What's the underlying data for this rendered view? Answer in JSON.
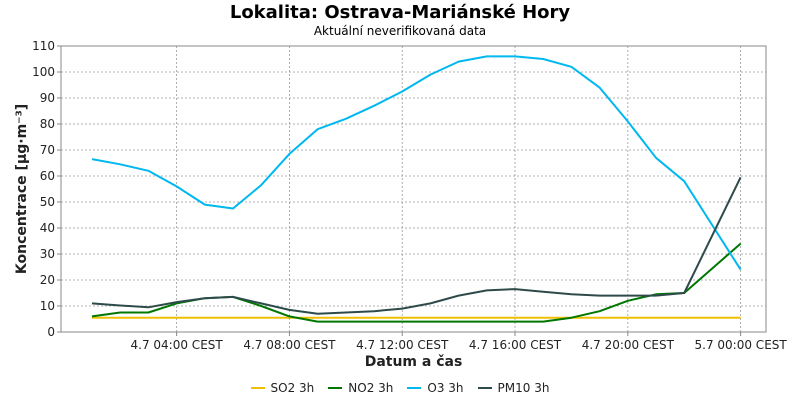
{
  "chart_data": {
    "type": "line",
    "title": "Lokalita: Ostrava-Mariánské Hory",
    "subtitle": "Aktuální neverifikovaná data",
    "xlabel": "Datum a čas",
    "ylabel": "Koncentrace [µg·m⁻³]",
    "ylim": [
      0,
      110
    ],
    "yticks": [
      0,
      10,
      20,
      30,
      40,
      50,
      60,
      70,
      80,
      90,
      100,
      110
    ],
    "xlim_hours": [
      -1.1,
      23.9
    ],
    "xticks": [
      {
        "hour": 3,
        "label": "4.7 04:00 CEST"
      },
      {
        "hour": 7,
        "label": "4.7 08:00 CEST"
      },
      {
        "hour": 11,
        "label": "4.7 12:00 CEST"
      },
      {
        "hour": 15,
        "label": "4.7 16:00 CEST"
      },
      {
        "hour": 19,
        "label": "4.7 20:00 CEST"
      },
      {
        "hour": 23,
        "label": "5.7 00:00 CEST"
      }
    ],
    "x_hours": [
      0,
      1,
      2,
      3,
      4,
      5,
      6,
      7,
      8,
      9,
      10,
      11,
      12,
      13,
      14,
      15,
      16,
      17,
      18,
      19,
      20,
      21,
      22,
      23
    ],
    "grid": true,
    "legend_position": "bottom",
    "series": [
      {
        "name": "SO2 3h",
        "color": "#f0c000",
        "values": [
          5.5,
          5.5,
          5.5,
          5.5,
          5.5,
          5.5,
          5.5,
          5.5,
          5.5,
          5.5,
          5.5,
          5.5,
          5.5,
          5.5,
          5.5,
          5.5,
          5.5,
          5.5,
          5.5,
          5.5,
          5.5,
          5.5,
          5.5,
          5.5
        ]
      },
      {
        "name": "NO2 3h",
        "color": "#007700",
        "values": [
          6,
          7.5,
          7.5,
          11,
          13,
          13.5,
          10,
          6,
          4,
          4,
          4,
          4,
          4,
          4,
          4,
          4,
          4,
          5.5,
          8,
          12,
          14.5,
          15,
          null,
          34
        ]
      },
      {
        "name": "O3 3h",
        "color": "#00b8f0",
        "values": [
          66.5,
          64.5,
          62,
          56,
          49,
          47.5,
          56.5,
          68.5,
          78,
          82,
          87,
          92.5,
          99,
          104,
          106,
          106,
          105,
          102,
          94,
          81,
          67,
          58,
          null,
          24
        ]
      },
      {
        "name": "PM10 3h",
        "color": "#2f4a4a",
        "values": [
          11,
          10.2,
          9.5,
          11.5,
          13,
          13.5,
          11,
          8.5,
          7,
          7.5,
          8,
          9,
          11,
          14,
          16,
          16.5,
          15.5,
          14.5,
          14,
          14,
          14,
          15,
          null,
          59.5
        ]
      }
    ]
  }
}
